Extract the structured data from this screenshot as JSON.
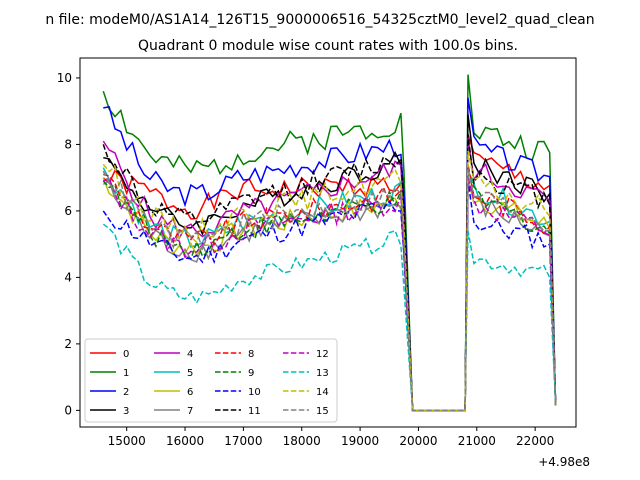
{
  "chart_data": {
    "type": "line",
    "suptitle": "n file: modeM0/AS1A14_126T15_9000006516_54325cztM0_level2_quad_clean",
    "title": "Quadrant 0 module wise count rates with 100.0s bins.",
    "xlabel": "",
    "ylabel": "",
    "x_offset_label": "+4.98e8",
    "xlim": [
      14200,
      22700
    ],
    "ylim": [
      -0.5,
      10.6
    ],
    "xticks": [
      15000,
      16000,
      17000,
      18000,
      19000,
      20000,
      21000,
      22000
    ],
    "yticks": [
      0,
      2,
      4,
      6,
      8,
      10
    ],
    "grid": false,
    "legend_position": "lower-left",
    "legend_columns": 4,
    "series": [
      {
        "name": "0",
        "color": "#ff0000",
        "dash": "solid",
        "seed": 1,
        "base": 6.6,
        "peak": 8.3,
        "amp": 0.35,
        "start": 7.0,
        "pre_end": 6.8,
        "post_a": 7.6,
        "post_b": 6.7
      },
      {
        "name": "1",
        "color": "#008000",
        "dash": "solid",
        "seed": 2,
        "base": 7.7,
        "peak": 10.1,
        "amp": 0.4,
        "start": 9.6,
        "pre_end": 8.7,
        "post_a": 8.5,
        "post_b": 7.7
      },
      {
        "name": "2",
        "color": "#0000ff",
        "dash": "solid",
        "seed": 3,
        "base": 7.0,
        "peak": 9.4,
        "amp": 0.35,
        "start": 9.1,
        "pre_end": 8.0,
        "post_a": 8.0,
        "post_b": 7.0
      },
      {
        "name": "3",
        "color": "#000000",
        "dash": "solid",
        "seed": 4,
        "base": 6.1,
        "peak": 8.9,
        "amp": 0.35,
        "start": 7.6,
        "pre_end": 7.5,
        "post_a": 7.5,
        "post_b": 6.5
      },
      {
        "name": "4",
        "color": "#bf00bf",
        "dash": "solid",
        "seed": 5,
        "base": 5.9,
        "peak": 8.2,
        "amp": 0.35,
        "start": 8.1,
        "pre_end": 7.3,
        "post_a": 7.3,
        "post_b": 6.3
      },
      {
        "name": "5",
        "color": "#00bfbf",
        "dash": "solid",
        "seed": 6,
        "base": 5.6,
        "peak": 7.2,
        "amp": 0.35,
        "start": 7.3,
        "pre_end": 6.6,
        "post_a": 6.8,
        "post_b": 5.7
      },
      {
        "name": "6",
        "color": "#bfbf00",
        "dash": "solid",
        "seed": 7,
        "base": 5.4,
        "peak": 7.0,
        "amp": 0.35,
        "start": 7.0,
        "pre_end": 6.3,
        "post_a": 6.5,
        "post_b": 5.5
      },
      {
        "name": "7",
        "color": "#808080",
        "dash": "solid",
        "seed": 8,
        "base": 5.3,
        "peak": 6.8,
        "amp": 0.35,
        "start": 6.8,
        "pre_end": 6.2,
        "post_a": 6.3,
        "post_b": 5.3
      },
      {
        "name": "8",
        "color": "#ff0000",
        "dash": "dashed",
        "seed": 9,
        "base": 5.6,
        "peak": 7.4,
        "amp": 0.35,
        "start": 7.1,
        "pre_end": 6.5,
        "post_a": 6.6,
        "post_b": 5.6
      },
      {
        "name": "9",
        "color": "#008000",
        "dash": "dashed",
        "seed": 10,
        "base": 5.4,
        "peak": 7.1,
        "amp": 0.35,
        "start": 6.9,
        "pre_end": 6.3,
        "post_a": 6.5,
        "post_b": 5.4
      },
      {
        "name": "10",
        "color": "#0000ff",
        "dash": "dashed",
        "seed": 11,
        "base": 5.1,
        "peak": 6.9,
        "amp": 0.35,
        "start": 6.0,
        "pre_end": 6.2,
        "post_a": 5.7,
        "post_b": 5.1
      },
      {
        "name": "11",
        "color": "#000000",
        "dash": "dashed",
        "seed": 12,
        "base": 6.2,
        "peak": 8.3,
        "amp": 0.35,
        "start": 8.0,
        "pre_end": 7.6,
        "post_a": 7.2,
        "post_b": 6.3
      },
      {
        "name": "12",
        "color": "#bf00bf",
        "dash": "dashed",
        "seed": 13,
        "base": 5.4,
        "peak": 7.0,
        "amp": 0.35,
        "start": 6.9,
        "pre_end": 6.3,
        "post_a": 6.3,
        "post_b": 5.4
      },
      {
        "name": "13",
        "color": "#00bfbf",
        "dash": "dashed",
        "seed": 14,
        "base": 3.9,
        "peak": 5.4,
        "amp": 0.25,
        "start": 5.6,
        "pre_end": 5.2,
        "post_a": 4.6,
        "post_b": 4.1
      },
      {
        "name": "14",
        "color": "#bfbf00",
        "dash": "dashed",
        "seed": 15,
        "base": 5.9,
        "peak": 7.8,
        "amp": 0.35,
        "start": 7.4,
        "pre_end": 7.0,
        "post_a": 6.8,
        "post_b": 6.0
      },
      {
        "name": "15",
        "color": "#808080",
        "dash": "dashed",
        "seed": 16,
        "base": 5.6,
        "peak": 7.3,
        "amp": 0.35,
        "start": 7.2,
        "pre_end": 6.5,
        "post_a": 6.6,
        "post_b": 5.6
      }
    ],
    "time_segments": {
      "pre_start": 14600,
      "pre_end": 19700,
      "drop_end": 19900,
      "gap_end": 20800,
      "post_peak": 20850,
      "post_end": 22250,
      "final_x": 22350,
      "step": 100
    }
  }
}
